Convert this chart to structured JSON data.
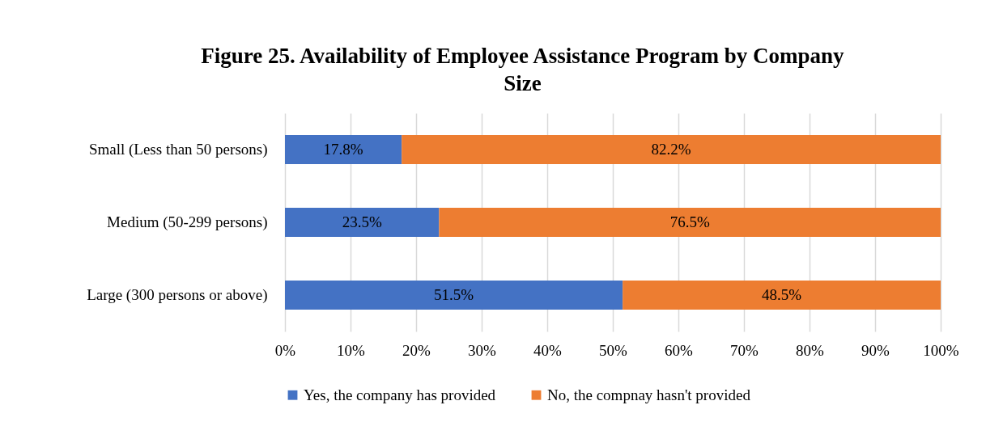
{
  "chart_data": {
    "type": "bar",
    "orientation": "horizontal",
    "stacked": true,
    "title": "Figure 25. Availability of Employee Assistance Program by Company Size",
    "categories": [
      "Small (Less than 50 persons)",
      "Medium (50-299 persons)",
      "Large (300 persons or above)"
    ],
    "series": [
      {
        "name": "Yes, the company has provided",
        "color": "#4472c4",
        "values": [
          17.8,
          23.5,
          51.5
        ],
        "value_labels": [
          "17.8%",
          "23.5%",
          "51.5%"
        ]
      },
      {
        "name": "No, the compnay hasn't provided",
        "color": "#ed7d31",
        "values": [
          82.2,
          76.5,
          48.5
        ],
        "value_labels": [
          "82.2%",
          "76.5%",
          "48.5%"
        ]
      }
    ],
    "xlim": [
      0,
      100
    ],
    "xticks": [
      {
        "value": 0,
        "label": "0%"
      },
      {
        "value": 10,
        "label": "10%"
      },
      {
        "value": 20,
        "label": "20%"
      },
      {
        "value": 30,
        "label": "30%"
      },
      {
        "value": 40,
        "label": "40%"
      },
      {
        "value": 50,
        "label": "50%"
      },
      {
        "value": 60,
        "label": "60%"
      },
      {
        "value": 70,
        "label": "70%"
      },
      {
        "value": 80,
        "label": "80%"
      },
      {
        "value": 90,
        "label": "90%"
      },
      {
        "value": 100,
        "label": "100%"
      }
    ],
    "grid": "x",
    "legend": "bottom"
  }
}
